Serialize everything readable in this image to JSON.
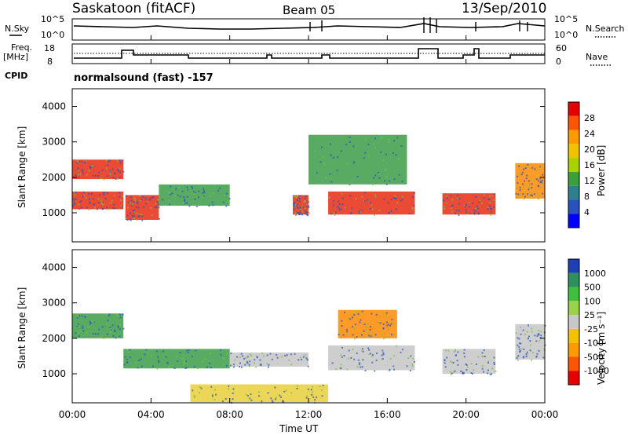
{
  "header": {
    "title": "Saskatoon (fitACF)",
    "beam": "Beam 05",
    "date": "13/Sep/2010"
  },
  "top_panels": {
    "nsky_label": "N.Sky",
    "nsearch_label": "N.Search",
    "noise_ticks": [
      "10^5",
      "10^0"
    ],
    "noise_ticks_right": [
      "10^5",
      "10^0"
    ],
    "freq_label_1": "Freq.",
    "freq_label_2": "[MHz]",
    "freq_ticks": [
      "18",
      "8"
    ],
    "nave_label": "Nave",
    "nave_ticks": [
      "60",
      "0"
    ],
    "cpid_label": "CPID",
    "cpid_value": "normalsound (fast) -157"
  },
  "chart_data": [
    {
      "type": "heatmap",
      "name": "power",
      "ylabel": "Slant Range [km]",
      "ylim": [
        180,
        4500
      ],
      "yticks": [
        "1000",
        "2000",
        "3000",
        "4000"
      ],
      "colorbar_label": "Power [dB]",
      "colorbar_ticks": [
        "28",
        "24",
        "20",
        "16",
        "12",
        "8",
        "4"
      ],
      "colorbar_colors": [
        "#e60000",
        "#ff5500",
        "#ff9a00",
        "#f2c200",
        "#a8d200",
        "#3d9e3d",
        "#2f7f8f",
        "#2a52be",
        "#0000ff"
      ],
      "echo_regions": [
        {
          "t": [
            0,
            2.6
          ],
          "r": [
            1950,
            2500
          ],
          "level": "red"
        },
        {
          "t": [
            0,
            2.6
          ],
          "r": [
            1100,
            1600
          ],
          "level": "red"
        },
        {
          "t": [
            2.7,
            4.4
          ],
          "r": [
            800,
            1500
          ],
          "level": "red"
        },
        {
          "t": [
            4.4,
            8.0
          ],
          "r": [
            1200,
            1800
          ],
          "level": "green"
        },
        {
          "t": [
            11.2,
            12.0
          ],
          "r": [
            950,
            1500
          ],
          "level": "red"
        },
        {
          "t": [
            13.0,
            17.4
          ],
          "r": [
            950,
            1600
          ],
          "level": "red"
        },
        {
          "t": [
            18.8,
            21.5
          ],
          "r": [
            950,
            1550
          ],
          "level": "red"
        },
        {
          "t": [
            22.5,
            24.0
          ],
          "r": [
            1400,
            2400
          ],
          "level": "orange"
        },
        {
          "t": [
            12.0,
            17.0
          ],
          "r": [
            1800,
            3200
          ],
          "level": "green"
        }
      ]
    },
    {
      "type": "heatmap",
      "name": "velocity",
      "ylabel": "Slant Range [km]",
      "xlabel": "Time UT",
      "ylim": [
        180,
        4500
      ],
      "yticks": [
        "1000",
        "2000",
        "3000",
        "4000"
      ],
      "xticks": [
        "00:00",
        "04:00",
        "08:00",
        "12:00",
        "16:00",
        "20:00",
        "00:00"
      ],
      "xlim": [
        0,
        24
      ],
      "colorbar_label": "Velocity [m s⁻¹]",
      "colorbar_ticks": [
        "1000",
        "500",
        "100",
        "25",
        "-25",
        "-100",
        "-500",
        "-1000"
      ],
      "colorbar_colors": [
        "#1f3fb5",
        "#2f8f5f",
        "#3fbf3f",
        "#9ad24a",
        "#c8c8c8",
        "#f2c200",
        "#ff9a00",
        "#ff5500",
        "#e60000"
      ],
      "echo_regions": [
        {
          "t": [
            0,
            2.6
          ],
          "r": [
            2000,
            2700
          ],
          "level": "green"
        },
        {
          "t": [
            2.6,
            8.0
          ],
          "r": [
            1150,
            1700
          ],
          "level": "green"
        },
        {
          "t": [
            8.0,
            12.0
          ],
          "r": [
            1200,
            1600
          ],
          "level": "grey"
        },
        {
          "t": [
            13.0,
            17.4
          ],
          "r": [
            1100,
            1800
          ],
          "level": "grey"
        },
        {
          "t": [
            18.8,
            21.5
          ],
          "r": [
            1000,
            1700
          ],
          "level": "grey"
        },
        {
          "t": [
            22.5,
            24.0
          ],
          "r": [
            1400,
            2400
          ],
          "level": "grey"
        },
        {
          "t": [
            6.0,
            13.0
          ],
          "r": [
            200,
            700
          ],
          "level": "yellow"
        },
        {
          "t": [
            13.5,
            16.5
          ],
          "r": [
            2000,
            2800
          ],
          "level": "orange"
        }
      ]
    }
  ]
}
